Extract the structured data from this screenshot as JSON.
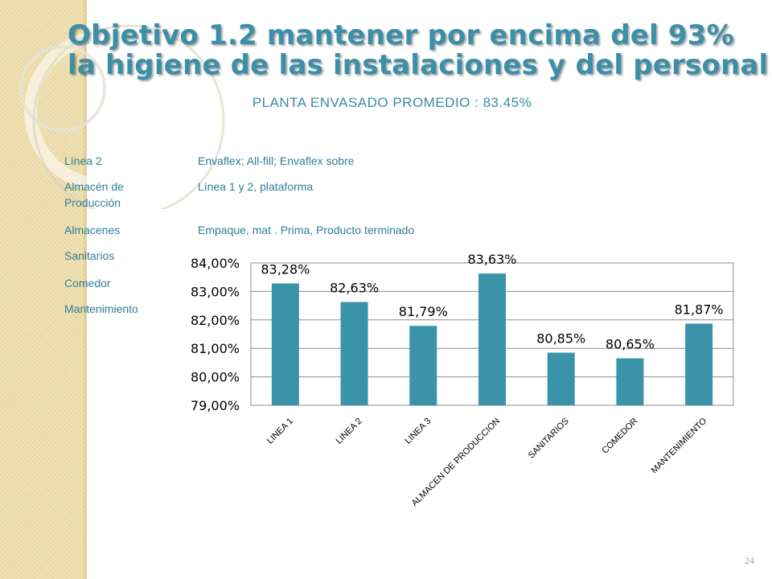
{
  "title": {
    "line1": "Objetivo 1.2 mantener por encima del  93%",
    "line2": "la higiene  de las instalaciones y del personal"
  },
  "subtitle": "PLANTA ENVASADO PROMEDIO : 83.45%",
  "details": [
    {
      "key": "Línea 2",
      "value": "Envaflex; All-fill; Envaflex sobre"
    },
    {
      "key": "Almacén de",
      "key2": "Producción",
      "value": "Línea 1 y 2, plataforma"
    },
    {
      "key": "Almacenes",
      "value": "Empaque, mat . Prima, Producto terminado"
    },
    {
      "key": "Sanitarios",
      "value": ""
    },
    {
      "key": "Comedor",
      "value": ""
    },
    {
      "key": "Mantenimiento",
      "value": ""
    }
  ],
  "page_number": "24",
  "colors": {
    "bar": "#3a93a9",
    "title": "#3c8fa7",
    "text": "#2e7f98",
    "band": "#f0e2b6"
  },
  "chart_data": {
    "type": "bar",
    "categories": [
      "LINEA 1",
      "LINEA 2",
      "LINEA 3",
      "ALMACEN DE PRODUCCION",
      "SANITARIOS",
      "COMEDOR",
      "MANTENIMIENTO"
    ],
    "values": [
      83.28,
      82.63,
      81.79,
      83.63,
      80.85,
      80.65,
      81.87
    ],
    "data_labels": [
      "83,28%",
      "82,63%",
      "81,79%",
      "83,63%",
      "80,85%",
      "80,65%",
      "81,87%"
    ],
    "ylim": [
      79,
      84
    ],
    "yticks": [
      79,
      80,
      81,
      82,
      83,
      84
    ],
    "ytick_labels": [
      "79,00%",
      "80,00%",
      "81,00%",
      "82,00%",
      "83,00%",
      "84,00%"
    ],
    "grid": true,
    "title": "",
    "xlabel": "",
    "ylabel": ""
  }
}
